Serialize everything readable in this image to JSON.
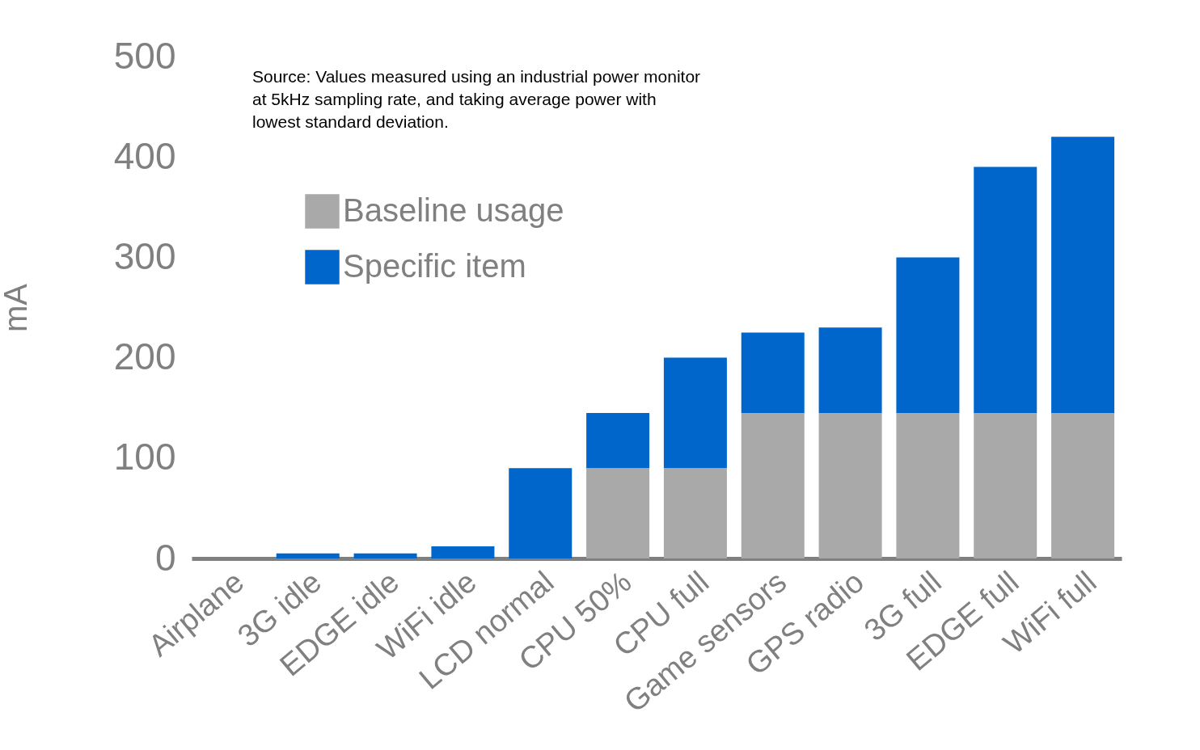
{
  "chart_data": {
    "type": "bar",
    "stacked": true,
    "ylabel": "mA",
    "categories": [
      "Airplane",
      "3G idle",
      "EDGE idle",
      "WiFi idle",
      "LCD normal",
      "CPU 50%",
      "CPU full",
      "Game sensors",
      "GPS radio",
      "3G full",
      "EDGE full",
      "WiFi full"
    ],
    "series": [
      {
        "name": "Baseline usage",
        "color": "#a9a9a9",
        "values": [
          0,
          0,
          0,
          0,
          0,
          90,
          90,
          145,
          145,
          145,
          145,
          145
        ]
      },
      {
        "name": "Specific item",
        "color": "#0066cc",
        "values": [
          0,
          5,
          5,
          12,
          90,
          55,
          110,
          80,
          85,
          155,
          245,
          275
        ]
      }
    ],
    "ylim": [
      0,
      500
    ],
    "yticks": [
      0,
      100,
      200,
      300,
      400,
      500
    ],
    "grid": false,
    "legend": "top left",
    "annotations": [
      "Source: Values measured using an industrial power monitor at 5kHz sampling rate, and taking average power with lowest standard deviation."
    ]
  }
}
